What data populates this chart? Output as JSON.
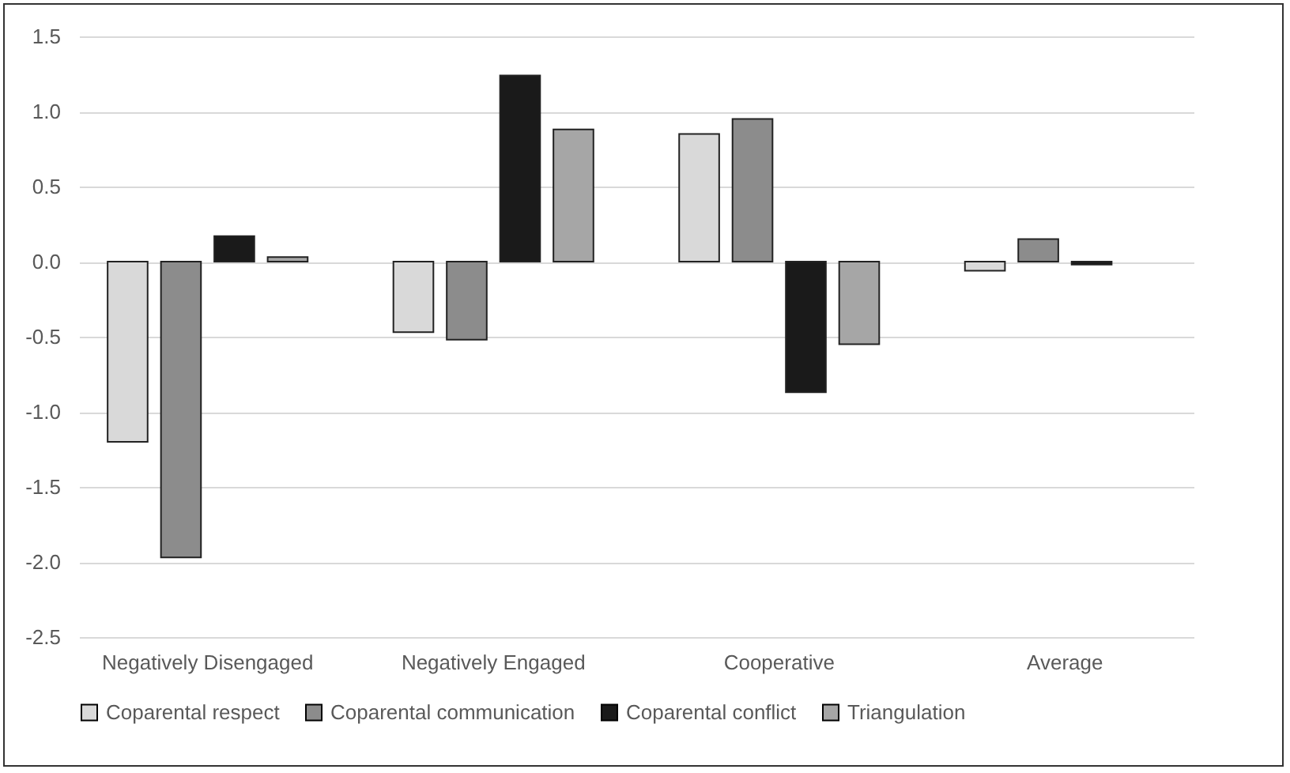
{
  "chart_data": {
    "type": "bar",
    "categories": [
      "Negatively Disengaged",
      "Negatively Engaged",
      "Cooperative",
      "Average"
    ],
    "series": [
      {
        "name": "Coparental respect",
        "color": "#d9d9d9",
        "values": [
          -1.2,
          -0.47,
          0.85,
          -0.06
        ]
      },
      {
        "name": "Coparental communication",
        "color": "#8c8c8c",
        "values": [
          -1.97,
          -0.52,
          0.95,
          0.15
        ]
      },
      {
        "name": "Coparental conflict",
        "color": "#1a1a1a",
        "values": [
          0.17,
          1.24,
          -0.87,
          -0.02
        ]
      },
      {
        "name": "Triangulation",
        "color": "#a6a6a6",
        "values": [
          0.03,
          0.88,
          -0.55,
          null
        ]
      }
    ],
    "ylim": [
      -2.5,
      1.5
    ],
    "yticks": [
      {
        "value": -2.5,
        "label": "-2.5"
      },
      {
        "value": -2,
        "label": "-2.0"
      },
      {
        "value": -1.5,
        "label": "-1.5"
      },
      {
        "value": -1,
        "label": "-1.0"
      },
      {
        "value": -0.5,
        "label": "-0.5"
      },
      {
        "value": 0,
        "label": "0.0"
      },
      {
        "value": 0.5,
        "label": "0.5"
      },
      {
        "value": 1,
        "label": "1.0"
      },
      {
        "value": 1.5,
        "label": "1.5"
      }
    ],
    "grid": "y",
    "legend": "bottom"
  }
}
